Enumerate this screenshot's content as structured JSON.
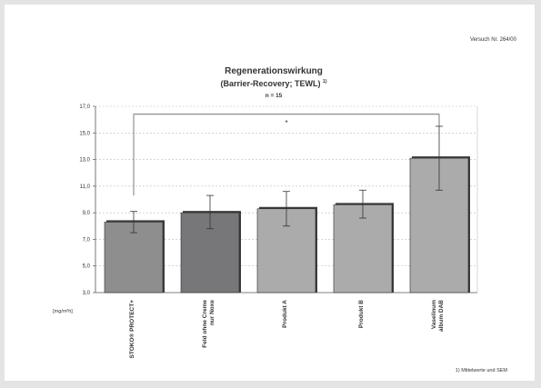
{
  "header": {
    "experiment_label": "Versuch Nr. 264/00"
  },
  "footnote": "1) Mittelwerte und SEM",
  "chart_data": {
    "type": "bar",
    "title": "Regenerationswirkung",
    "subtitle": "(Barrier-Recovery; TEWL)",
    "subtitle_superscript": "1)",
    "sample_size": "n = 15",
    "ylabel": "[mg/m²h]",
    "ylim": [
      3.0,
      17.0
    ],
    "yticks": [
      "3,0",
      "5,0",
      "7,0",
      "9,0",
      "11,0",
      "13,0",
      "15,0",
      "17,0"
    ],
    "grid": true,
    "categories": [
      "STOKO® PROTECT+",
      "Feld ohne Creme nur Noxe",
      "Produkt A",
      "Produkt B",
      "Vaselinum album DAB"
    ],
    "category_lines": [
      [
        "STOKO® PROTECT+"
      ],
      [
        "Feld ohne Creme",
        "nur Noxe"
      ],
      [
        "Produkt A"
      ],
      [
        "Produkt B"
      ],
      [
        "Vaselinum",
        "album DAB"
      ]
    ],
    "values": [
      8.3,
      9.0,
      9.3,
      9.6,
      13.1
    ],
    "error_low": [
      7.5,
      7.8,
      8.0,
      8.6,
      10.7
    ],
    "error_high": [
      9.1,
      10.3,
      10.6,
      10.7,
      15.5
    ],
    "bar_colors": [
      "#8e8e8e",
      "#77777a",
      "#ababab",
      "#ababab",
      "#ababab"
    ],
    "significance": {
      "from": 0,
      "to": 4,
      "marker": "*",
      "level": 16.4
    }
  }
}
